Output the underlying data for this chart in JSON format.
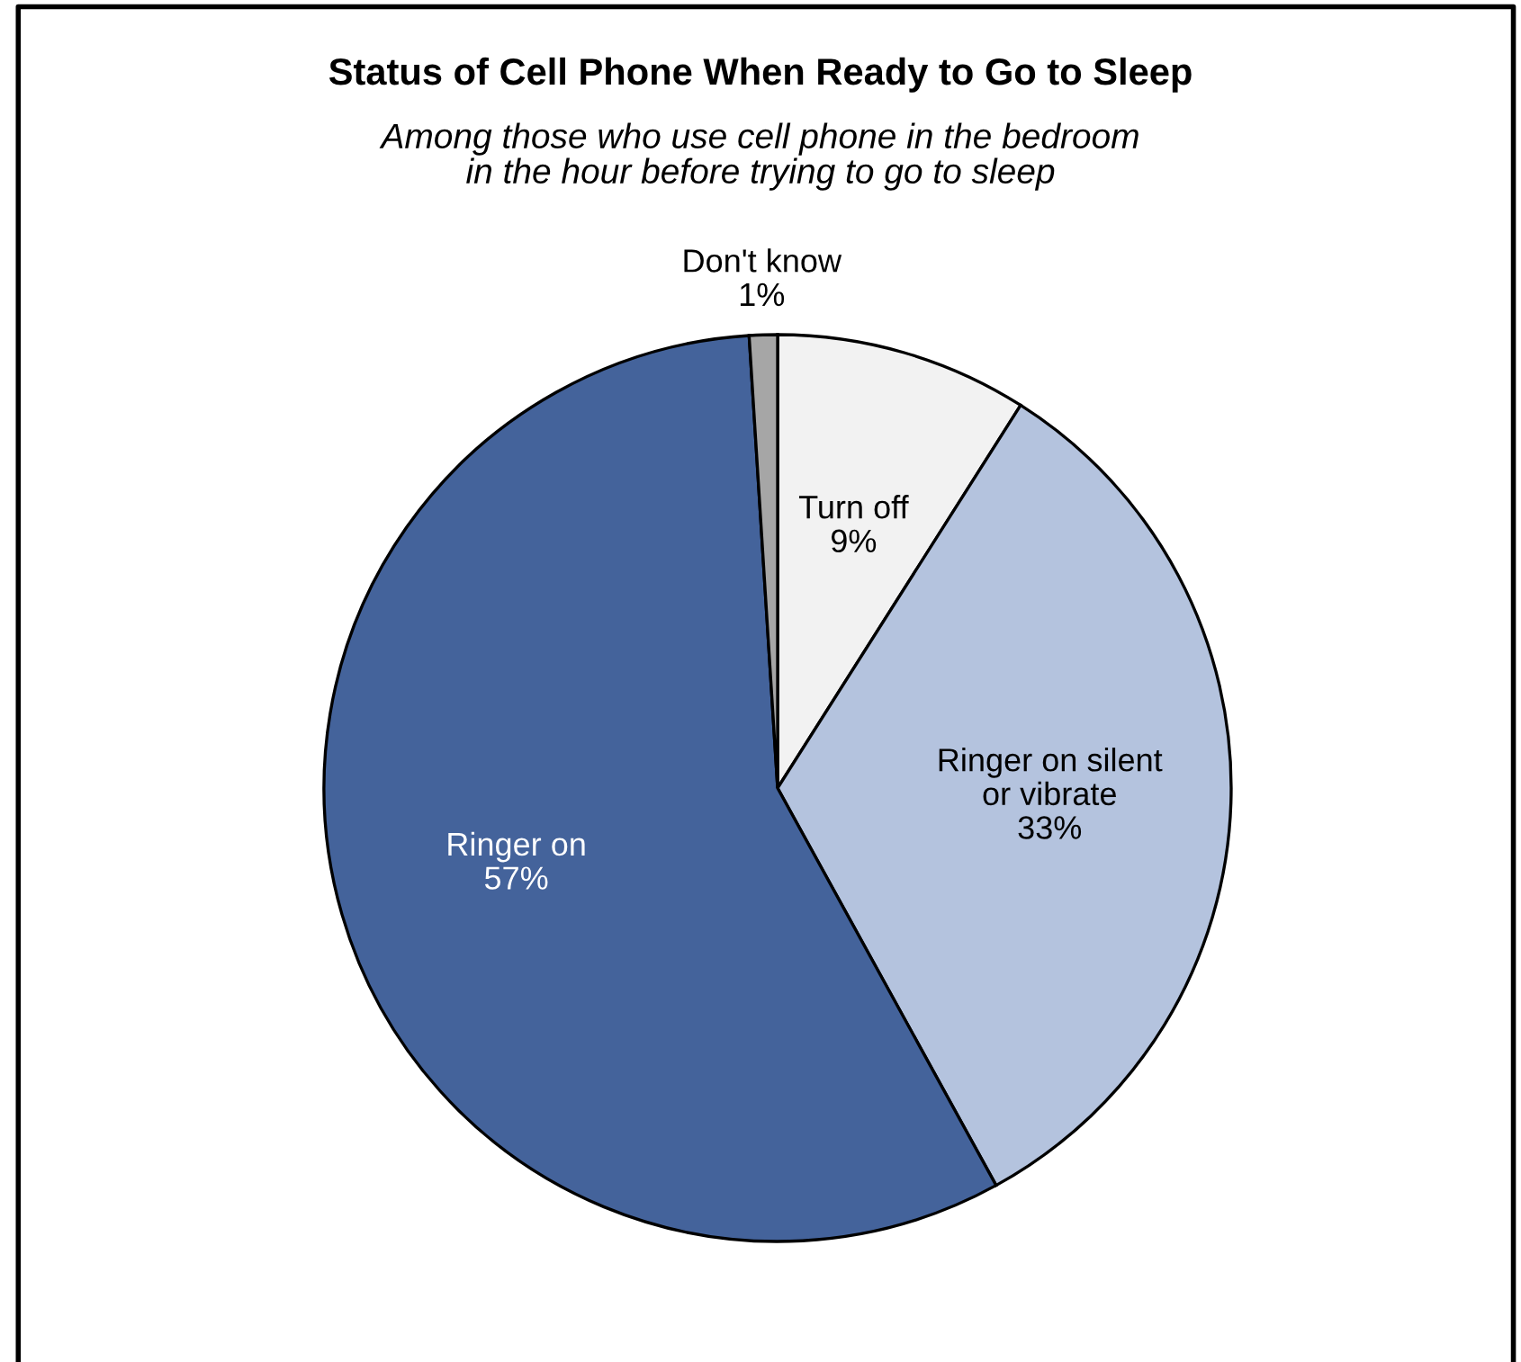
{
  "chart_data": {
    "type": "pie",
    "title": "Status of Cell Phone When Ready to Go to Sleep",
    "subtitle": "Among those who use cell phone in the bedroom\nin the hour before trying to go to sleep",
    "categories": [
      "Turn off",
      "Ringer on silent\nor vibrate",
      "Ringer on",
      "Don't know"
    ],
    "values": [
      9,
      33,
      57,
      1
    ],
    "colors": [
      "#f2f2f2",
      "#b4c3de",
      "#44639b",
      "#a6a6a6"
    ],
    "value_labels": [
      "9%",
      "33%",
      "57%",
      "1%"
    ]
  }
}
